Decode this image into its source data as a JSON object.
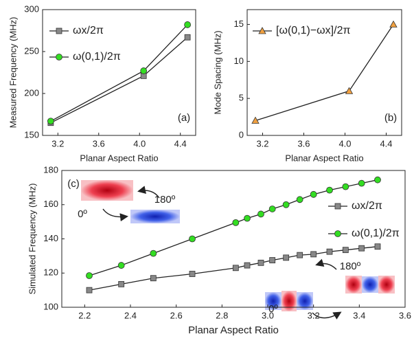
{
  "chart_data": [
    {
      "type": "line",
      "label": "(a)",
      "x_label": "Planar Aspect Ratio",
      "y_label": "Measured Frequency (MHz)",
      "x": [
        3.13,
        4.04,
        4.47
      ],
      "xlim": [
        3.05,
        4.55
      ],
      "xticks": [
        3.2,
        3.6,
        {
          "value": 4,
          "label": "4.0"
        },
        4.4
      ],
      "ylim": [
        150,
        300
      ],
      "yticks": [
        150,
        200,
        250,
        300
      ],
      "line_color": "#222",
      "legend": "upper left",
      "series": [
        {
          "name": "ωx/2π",
          "color": "#888888",
          "marker": "square",
          "values": [
            165,
            221,
            267
          ]
        },
        {
          "name": "ω(0,1)/2π",
          "color": "#33dd22",
          "marker": "circle",
          "values": [
            167,
            227,
            282
          ]
        }
      ]
    },
    {
      "type": "line",
      "label": "(b)",
      "x_label": "Planar Aspect Ratio",
      "y_label": "Mode Spacing (MHz)",
      "x": [
        3.13,
        4.04,
        4.47
      ],
      "xlim": [
        3.05,
        4.55
      ],
      "xticks": [
        3.2,
        3.6,
        {
          "value": 4,
          "label": "4.0"
        },
        4.4
      ],
      "ylim": [
        0,
        17
      ],
      "yticks": [
        0,
        5,
        10,
        15
      ],
      "line_color": "#222",
      "legend": "upper left",
      "series": [
        {
          "name": "[ω(0,1)−ωx]/2π",
          "color": "#f0a040",
          "marker": "triangle",
          "values": [
            2,
            6,
            15
          ]
        }
      ]
    },
    {
      "type": "line",
      "label": "(c)",
      "x_label": "Planar Aspect Ratio",
      "y_label": "Simulated Frequency (MHz)",
      "x": [
        2.22,
        2.36,
        2.5,
        2.67,
        2.86,
        2.91,
        2.97,
        3.02,
        3.08,
        3.14,
        3.2,
        3.27,
        3.34,
        3.41,
        3.48
      ],
      "xlim": [
        2.1,
        3.6
      ],
      "xticks": [
        2.2,
        2.4,
        2.6,
        2.8,
        {
          "value": 3,
          "label": "3.0"
        },
        3.2,
        3.4,
        3.6
      ],
      "ylim": [
        100,
        180
      ],
      "yticks": [
        100,
        120,
        140,
        160,
        180
      ],
      "line_color": "#222",
      "legend": "right",
      "series": [
        {
          "name": "ωx/2π",
          "color": "#888888",
          "marker": "square",
          "values": [
            110,
            113.5,
            117,
            119.5,
            123,
            124.5,
            126,
            127.5,
            129,
            130.5,
            131,
            132.5,
            133.5,
            134.5,
            135.5
          ]
        },
        {
          "name": "ω(0,1)/2π",
          "color": "#33dd22",
          "marker": "circle",
          "values": [
            118.5,
            124.5,
            131.5,
            140,
            149.5,
            152,
            154.5,
            157.5,
            160,
            163,
            166,
            168.5,
            170.5,
            172.5,
            174.5
          ]
        }
      ],
      "annotations": [
        "0º",
        "180º",
        "0º",
        "180º"
      ]
    }
  ]
}
